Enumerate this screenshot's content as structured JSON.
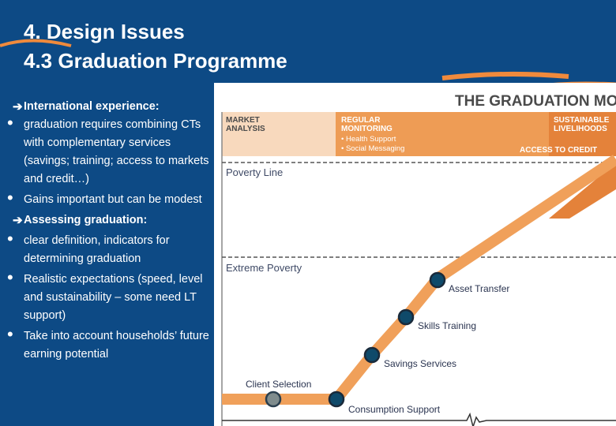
{
  "slide": {
    "title_line1": "4. Design Issues",
    "title_line2": "4.3 Graduation Programme"
  },
  "bullets": {
    "heading1": "International experience:",
    "item1": "graduation requires combining CTs with complementary services (savings; training; access to markets and credit…)",
    "item2": "Gains important but can be modest",
    "heading2": "Assessing graduation:",
    "item3": "clear definition, indicators for determining graduation",
    "item4": "Realistic expectations (speed, level and sustainability – some need LT support)",
    "item5": "Take into account households’ future earning potential"
  },
  "diagram": {
    "title": "THE GRADUATION MODE",
    "market_analysis": [
      "MARKET",
      "ANALYSIS"
    ],
    "regular_monitoring": [
      "REGULAR",
      "MONITORING"
    ],
    "monitoring_items": [
      "• Health Support",
      "• Social Messaging"
    ],
    "sustainable_livelihoods": [
      "SUSTAINABLE",
      "LIVELIHOODS"
    ],
    "access_to_credit": "ACCESS TO CREDIT",
    "poverty_line": "Poverty Line",
    "extreme_poverty": "Extreme Poverty",
    "steps": {
      "client_selection": "Client Selection",
      "consumption_support": "Consumption Support",
      "savings_services": "Savings Services",
      "skills_training": "Skills  Training",
      "asset_transfer": "Asset Transfer"
    }
  },
  "colors": {
    "background": "#0d4a85",
    "orange": "#f0a05a",
    "orange_dark": "#e4823a",
    "band_light": "#f8d9bd",
    "node_fill": "#0f4a6a"
  }
}
